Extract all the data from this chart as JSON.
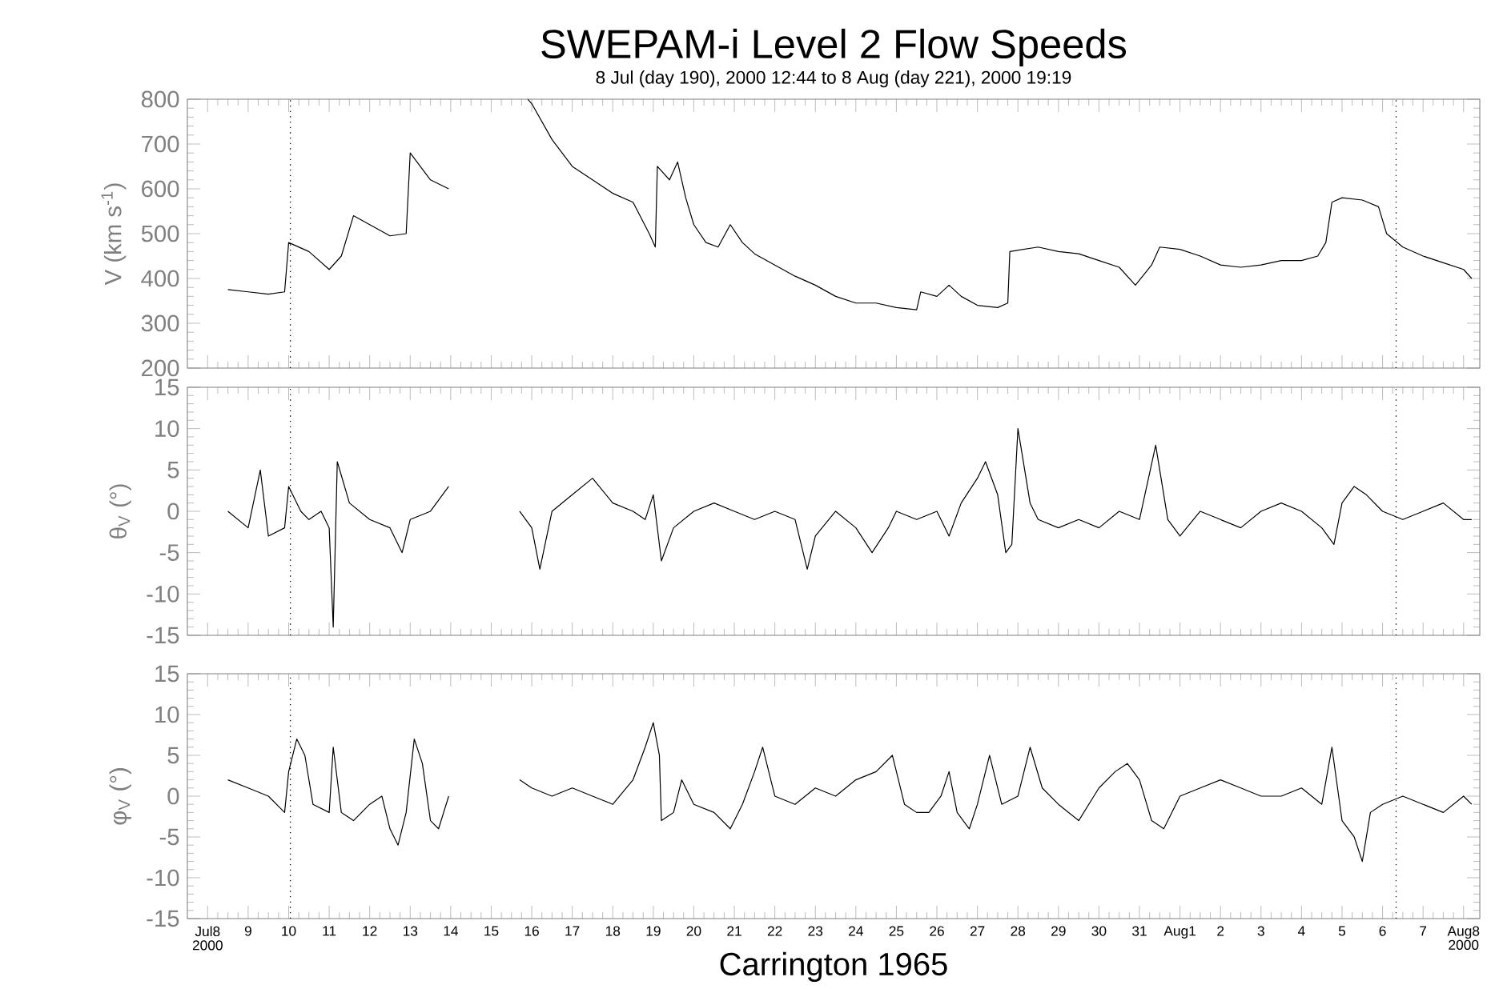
{
  "chart_data": [
    {
      "type": "line",
      "title": "SWEPAM-i Level 2 Flow Speeds",
      "subtitle": "8 Jul (day 190), 2000 12:44 to 8 Aug (day 221), 2000 19:19",
      "ylabel": "V (km s$^{-1}$)",
      "tick_labels": "y",
      "xlim": [
        "2000-07-07T12:00",
        "2000-08-08T09:36"
      ],
      "xticks": [
        {
          "value": "2000-07-08",
          "label": null
        },
        {
          "value": "2000-07-09",
          "label": null
        },
        {
          "value": "2000-07-10",
          "label": null
        },
        {
          "value": "2000-07-11",
          "label": null
        },
        {
          "value": "2000-07-12",
          "label": null
        },
        {
          "value": "2000-07-13",
          "label": null
        },
        {
          "value": "2000-07-14",
          "label": null
        },
        {
          "value": "2000-07-15",
          "label": null
        },
        {
          "value": "2000-07-16",
          "label": null
        },
        {
          "value": "2000-07-17",
          "label": null
        },
        {
          "value": "2000-07-18",
          "label": null
        },
        {
          "value": "2000-07-19",
          "label": null
        },
        {
          "value": "2000-07-20",
          "label": null
        },
        {
          "value": "2000-07-21",
          "label": null
        },
        {
          "value": "2000-07-22",
          "label": null
        },
        {
          "value": "2000-07-23",
          "label": null
        },
        {
          "value": "2000-07-24",
          "label": null
        },
        {
          "value": "2000-07-25",
          "label": null
        },
        {
          "value": "2000-07-26",
          "label": null
        },
        {
          "value": "2000-07-27",
          "label": null
        },
        {
          "value": "2000-07-28",
          "label": null
        },
        {
          "value": "2000-07-29",
          "label": null
        },
        {
          "value": "2000-07-30",
          "label": null
        },
        {
          "value": "2000-07-31",
          "label": null
        },
        {
          "value": "2000-08-01",
          "label": null
        },
        {
          "value": "2000-08-02",
          "label": null
        },
        {
          "value": "2000-08-03",
          "label": null
        },
        {
          "value": "2000-08-04",
          "label": null
        },
        {
          "value": "2000-08-05",
          "label": null
        },
        {
          "value": "2000-08-06",
          "label": null
        },
        {
          "value": "2000-08-07",
          "label": null
        },
        {
          "value": "2000-08-08",
          "label": null
        }
      ],
      "ylim": [
        200,
        800
      ],
      "yticks": [
        200,
        300,
        400,
        500,
        600,
        700,
        800
      ],
      "ref_lines": [
        {
          "axis": "x",
          "value": "2000-07-10T01:00",
          "line_style": "dotted",
          "color": "#000000"
        },
        {
          "axis": "x",
          "value": "2000-08-06T08:00",
          "line_style": "dotted",
          "color": "#000000"
        }
      ],
      "series": [
        {
          "color": "#000000",
          "line_style": "solid",
          "x": [
            "2000-07-08T12:00",
            "2000-07-09T00:00",
            "2000-07-09T12:00",
            "2000-07-09T21:36",
            "2000-07-10T00:00",
            "2000-07-10T12:00",
            "2000-07-11T00:00",
            "2000-07-11T07:12",
            "2000-07-11T14:24",
            "2000-07-12T00:00",
            "2000-07-12T12:00",
            "2000-07-12T21:36",
            "2000-07-13T00:00",
            "2000-07-13T12:00",
            "2000-07-13T22:48",
            "2000-07-14T12:00",
            "2000-07-15T21:36",
            "2000-07-16T00:00",
            "2000-07-16T12:00",
            "2000-07-17T00:00",
            "2000-07-17T12:00",
            "2000-07-18T00:00",
            "2000-07-18T12:00",
            "2000-07-18T21:36",
            "2000-07-19T01:12",
            "2000-07-19T02:24",
            "2000-07-19T09:36",
            "2000-07-19T14:24",
            "2000-07-19T19:12",
            "2000-07-20T00:00",
            "2000-07-20T07:12",
            "2000-07-20T14:24",
            "2000-07-20T21:36",
            "2000-07-21T04:48",
            "2000-07-21T12:00",
            "2000-07-22T00:00",
            "2000-07-22T12:00",
            "2000-07-23T00:00",
            "2000-07-23T12:00",
            "2000-07-24T00:00",
            "2000-07-24T12:00",
            "2000-07-25T00:00",
            "2000-07-25T12:00",
            "2000-07-25T14:24",
            "2000-07-26T00:00",
            "2000-07-26T07:12",
            "2000-07-26T14:24",
            "2000-07-27T00:00",
            "2000-07-27T12:00",
            "2000-07-27T18:00",
            "2000-07-27T19:12",
            "2000-07-28T12:00",
            "2000-07-29T00:00",
            "2000-07-29T12:00",
            "2000-07-30T00:00",
            "2000-07-30T12:00",
            "2000-07-30T21:36",
            "2000-07-31T07:12",
            "2000-07-31T12:00",
            "2000-08-01T00:00",
            "2000-08-01T12:00",
            "2000-08-02T00:00",
            "2000-08-02T12:00",
            "2000-08-03T00:00",
            "2000-08-03T12:00",
            "2000-08-04T00:00",
            "2000-08-04T09:36",
            "2000-08-04T14:24",
            "2000-08-04T18:00",
            "2000-08-05T00:00",
            "2000-08-05T12:00",
            "2000-08-05T21:36",
            "2000-08-06T02:24",
            "2000-08-06T12:00",
            "2000-08-07T00:00",
            "2000-08-07T12:00",
            "2000-08-08T00:00",
            "2000-08-08T04:48"
          ],
          "values": [
            375,
            370,
            365,
            370,
            480,
            460,
            420,
            450,
            540,
            520,
            495,
            500,
            680,
            620,
            600,
            null,
            800,
            790,
            710,
            650,
            620,
            590,
            570,
            500,
            470,
            650,
            620,
            660,
            580,
            520,
            480,
            470,
            520,
            480,
            455,
            430,
            405,
            385,
            360,
            345,
            345,
            335,
            330,
            370,
            360,
            385,
            360,
            340,
            335,
            345,
            460,
            470,
            460,
            455,
            440,
            425,
            385,
            430,
            470,
            465,
            450,
            430,
            425,
            430,
            440,
            440,
            450,
            480,
            570,
            580,
            575,
            560,
            500,
            470,
            450,
            435,
            420,
            400
          ]
        }
      ]
    },
    {
      "type": "line",
      "ylabel": "θ$_{V}$ (°)",
      "tick_labels": "y",
      "xlim": [
        "2000-07-07T12:00",
        "2000-08-08T09:36"
      ],
      "xticks": [
        {
          "value": "2000-07-08",
          "label": null
        },
        {
          "value": "2000-07-09",
          "label": null
        },
        {
          "value": "2000-07-10",
          "label": null
        },
        {
          "value": "2000-07-11",
          "label": null
        },
        {
          "value": "2000-07-12",
          "label": null
        },
        {
          "value": "2000-07-13",
          "label": null
        },
        {
          "value": "2000-07-14",
          "label": null
        },
        {
          "value": "2000-07-15",
          "label": null
        },
        {
          "value": "2000-07-16",
          "label": null
        },
        {
          "value": "2000-07-17",
          "label": null
        },
        {
          "value": "2000-07-18",
          "label": null
        },
        {
          "value": "2000-07-19",
          "label": null
        },
        {
          "value": "2000-07-20",
          "label": null
        },
        {
          "value": "2000-07-21",
          "label": null
        },
        {
          "value": "2000-07-22",
          "label": null
        },
        {
          "value": "2000-07-23",
          "label": null
        },
        {
          "value": "2000-07-24",
          "label": null
        },
        {
          "value": "2000-07-25",
          "label": null
        },
        {
          "value": "2000-07-26",
          "label": null
        },
        {
          "value": "2000-07-27",
          "label": null
        },
        {
          "value": "2000-07-28",
          "label": null
        },
        {
          "value": "2000-07-29",
          "label": null
        },
        {
          "value": "2000-07-30",
          "label": null
        },
        {
          "value": "2000-07-31",
          "label": null
        },
        {
          "value": "2000-08-01",
          "label": null
        },
        {
          "value": "2000-08-02",
          "label": null
        },
        {
          "value": "2000-08-03",
          "label": null
        },
        {
          "value": "2000-08-04",
          "label": null
        },
        {
          "value": "2000-08-05",
          "label": null
        },
        {
          "value": "2000-08-06",
          "label": null
        },
        {
          "value": "2000-08-07",
          "label": null
        },
        {
          "value": "2000-08-08",
          "label": null
        }
      ],
      "ylim": [
        -15,
        15
      ],
      "yticks": [
        -15,
        -10,
        -5,
        0,
        5,
        10,
        15
      ],
      "ref_lines": [
        {
          "axis": "x",
          "value": "2000-07-10T01:00",
          "line_style": "dotted",
          "color": "#000000"
        },
        {
          "axis": "x",
          "value": "2000-08-06T08:00",
          "line_style": "dotted",
          "color": "#000000"
        }
      ],
      "series": [
        {
          "color": "#000000",
          "line_style": "solid",
          "x": [
            "2000-07-08T12:00",
            "2000-07-09T00:00",
            "2000-07-09T07:12",
            "2000-07-09T12:00",
            "2000-07-09T21:36",
            "2000-07-10T00:00",
            "2000-07-10T07:12",
            "2000-07-10T12:00",
            "2000-07-10T19:12",
            "2000-07-11T00:00",
            "2000-07-11T02:24",
            "2000-07-11T04:48",
            "2000-07-11T12:00",
            "2000-07-12T00:00",
            "2000-07-12T12:00",
            "2000-07-12T19:12",
            "2000-07-13T00:00",
            "2000-07-13T12:00",
            "2000-07-13T22:48",
            "2000-07-14T12:00",
            "2000-07-15T16:48",
            "2000-07-16T00:00",
            "2000-07-16T04:48",
            "2000-07-16T12:00",
            "2000-07-17T00:00",
            "2000-07-17T12:00",
            "2000-07-18T00:00",
            "2000-07-18T12:00",
            "2000-07-18T19:12",
            "2000-07-19T00:00",
            "2000-07-19T04:48",
            "2000-07-19T12:00",
            "2000-07-20T00:00",
            "2000-07-20T12:00",
            "2000-07-21T00:00",
            "2000-07-21T12:00",
            "2000-07-22T00:00",
            "2000-07-22T12:00",
            "2000-07-22T19:12",
            "2000-07-23T00:00",
            "2000-07-23T12:00",
            "2000-07-24T00:00",
            "2000-07-24T09:36",
            "2000-07-24T19:12",
            "2000-07-25T00:00",
            "2000-07-25T12:00",
            "2000-07-26T00:00",
            "2000-07-26T07:12",
            "2000-07-26T14:24",
            "2000-07-27T00:00",
            "2000-07-27T04:48",
            "2000-07-27T12:00",
            "2000-07-27T16:48",
            "2000-07-27T20:24",
            "2000-07-28T00:00",
            "2000-07-28T07:12",
            "2000-07-28T12:00",
            "2000-07-29T00:00",
            "2000-07-29T12:00",
            "2000-07-30T00:00",
            "2000-07-30T12:00",
            "2000-07-31T00:00",
            "2000-07-31T09:36",
            "2000-07-31T16:48",
            "2000-08-01T00:00",
            "2000-08-01T12:00",
            "2000-08-02T00:00",
            "2000-08-02T12:00",
            "2000-08-03T00:00",
            "2000-08-03T12:00",
            "2000-08-04T00:00",
            "2000-08-04T12:00",
            "2000-08-04T19:12",
            "2000-08-05T00:00",
            "2000-08-05T07:12",
            "2000-08-05T14:24",
            "2000-08-06T00:00",
            "2000-08-06T12:00",
            "2000-08-07T00:00",
            "2000-08-07T12:00",
            "2000-08-08T00:00",
            "2000-08-08T04:48"
          ],
          "values": [
            0,
            -2,
            5,
            -3,
            -2,
            3,
            0,
            -1,
            0,
            -2,
            -14,
            6,
            1,
            -1,
            -2,
            -5,
            -1,
            0,
            3,
            null,
            0,
            -2,
            -7,
            0,
            2,
            4,
            1,
            0,
            -1,
            2,
            -6,
            -2,
            0,
            1,
            0,
            -1,
            0,
            -1,
            -7,
            -3,
            0,
            -2,
            -5,
            -2,
            0,
            -1,
            0,
            -3,
            1,
            4,
            6,
            2,
            -5,
            -4,
            10,
            1,
            -1,
            -2,
            -1,
            -2,
            0,
            -1,
            8,
            -1,
            -3,
            0,
            -1,
            -2,
            0,
            1,
            0,
            -2,
            -4,
            1,
            3,
            2,
            0,
            -1,
            0,
            1,
            -1,
            -1
          ]
        }
      ]
    },
    {
      "type": "line",
      "ylabel": "φ$_{V}$ (°)",
      "xlabel": "Carrington 1965",
      "xlim": [
        "2000-07-07T12:00",
        "2000-08-08T09:36"
      ],
      "xticks": [
        {
          "value": "2000-07-08",
          "label": "Jul8 2000"
        },
        {
          "value": "2000-07-09",
          "label": "9"
        },
        {
          "value": "2000-07-10",
          "label": "10"
        },
        {
          "value": "2000-07-11",
          "label": "11"
        },
        {
          "value": "2000-07-12",
          "label": "12"
        },
        {
          "value": "2000-07-13",
          "label": "13"
        },
        {
          "value": "2000-07-14",
          "label": "14"
        },
        {
          "value": "2000-07-15",
          "label": "15"
        },
        {
          "value": "2000-07-16",
          "label": "16"
        },
        {
          "value": "2000-07-17",
          "label": "17"
        },
        {
          "value": "2000-07-18",
          "label": "18"
        },
        {
          "value": "2000-07-19",
          "label": "19"
        },
        {
          "value": "2000-07-20",
          "label": "20"
        },
        {
          "value": "2000-07-21",
          "label": "21"
        },
        {
          "value": "2000-07-22",
          "label": "22"
        },
        {
          "value": "2000-07-23",
          "label": "23"
        },
        {
          "value": "2000-07-24",
          "label": "24"
        },
        {
          "value": "2000-07-25",
          "label": "25"
        },
        {
          "value": "2000-07-26",
          "label": "26"
        },
        {
          "value": "2000-07-27",
          "label": "27"
        },
        {
          "value": "2000-07-28",
          "label": "28"
        },
        {
          "value": "2000-07-29",
          "label": "29"
        },
        {
          "value": "2000-07-30",
          "label": "30"
        },
        {
          "value": "2000-07-31",
          "label": "31"
        },
        {
          "value": "2000-08-01",
          "label": "Aug1"
        },
        {
          "value": "2000-08-02",
          "label": "2"
        },
        {
          "value": "2000-08-03",
          "label": "3"
        },
        {
          "value": "2000-08-04",
          "label": "4"
        },
        {
          "value": "2000-08-05",
          "label": "5"
        },
        {
          "value": "2000-08-06",
          "label": "6"
        },
        {
          "value": "2000-08-07",
          "label": "7"
        },
        {
          "value": "2000-08-08",
          "label": "Aug8 2000"
        }
      ],
      "ylim": [
        -15,
        15
      ],
      "yticks": [
        -15,
        -10,
        -5,
        0,
        5,
        10,
        15
      ],
      "ref_lines": [
        {
          "axis": "x",
          "value": "2000-07-10T01:00",
          "line_style": "dotted",
          "color": "#000000"
        },
        {
          "axis": "x",
          "value": "2000-08-06T08:00",
          "line_style": "dotted",
          "color": "#000000"
        }
      ],
      "series": [
        {
          "color": "#000000",
          "line_style": "solid",
          "x": [
            "2000-07-08T12:00",
            "2000-07-09T00:00",
            "2000-07-09T12:00",
            "2000-07-09T21:36",
            "2000-07-10T00:00",
            "2000-07-10T04:48",
            "2000-07-10T09:36",
            "2000-07-10T14:24",
            "2000-07-11T00:00",
            "2000-07-11T02:24",
            "2000-07-11T07:12",
            "2000-07-11T14:24",
            "2000-07-12T00:00",
            "2000-07-12T07:12",
            "2000-07-12T12:00",
            "2000-07-12T16:48",
            "2000-07-12T21:36",
            "2000-07-13T02:24",
            "2000-07-13T07:12",
            "2000-07-13T12:00",
            "2000-07-13T16:48",
            "2000-07-13T22:48",
            "2000-07-14T12:00",
            "2000-07-15T16:48",
            "2000-07-16T00:00",
            "2000-07-16T12:00",
            "2000-07-17T00:00",
            "2000-07-17T12:00",
            "2000-07-18T00:00",
            "2000-07-18T12:00",
            "2000-07-18T19:12",
            "2000-07-19T00:00",
            "2000-07-19T03:36",
            "2000-07-19T04:48",
            "2000-07-19T12:00",
            "2000-07-19T16:48",
            "2000-07-20T00:00",
            "2000-07-20T12:00",
            "2000-07-20T21:36",
            "2000-07-21T04:48",
            "2000-07-21T12:00",
            "2000-07-21T16:48",
            "2000-07-22T00:00",
            "2000-07-22T12:00",
            "2000-07-23T00:00",
            "2000-07-23T12:00",
            "2000-07-24T00:00",
            "2000-07-24T12:00",
            "2000-07-24T21:36",
            "2000-07-25T04:48",
            "2000-07-25T12:00",
            "2000-07-25T19:12",
            "2000-07-26T02:24",
            "2000-07-26T07:12",
            "2000-07-26T12:00",
            "2000-07-26T19:12",
            "2000-07-27T00:00",
            "2000-07-27T07:12",
            "2000-07-27T14:24",
            "2000-07-28T00:00",
            "2000-07-28T07:12",
            "2000-07-28T14:24",
            "2000-07-29T00:00",
            "2000-07-29T12:00",
            "2000-07-30T00:00",
            "2000-07-30T09:36",
            "2000-07-30T16:48",
            "2000-07-31T00:00",
            "2000-07-31T07:12",
            "2000-07-31T14:24",
            "2000-08-01T00:00",
            "2000-08-01T12:00",
            "2000-08-02T00:00",
            "2000-08-02T12:00",
            "2000-08-03T00:00",
            "2000-08-03T12:00",
            "2000-08-04T00:00",
            "2000-08-04T12:00",
            "2000-08-04T18:00",
            "2000-08-05T00:00",
            "2000-08-05T07:12",
            "2000-08-05T12:00",
            "2000-08-05T16:48",
            "2000-08-06T00:00",
            "2000-08-06T12:00",
            "2000-08-07T00:00",
            "2000-08-07T12:00",
            "2000-08-08T00:00",
            "2000-08-08T04:48"
          ],
          "values": [
            2,
            1,
            0,
            -2,
            3,
            7,
            5,
            -1,
            -2,
            6,
            -2,
            -3,
            -1,
            0,
            -4,
            -6,
            -2,
            7,
            4,
            -3,
            -4,
            0,
            null,
            2,
            1,
            0,
            1,
            0,
            -1,
            2,
            6,
            9,
            5,
            -3,
            -2,
            2,
            -1,
            -2,
            -4,
            -1,
            3,
            6,
            0,
            -1,
            1,
            0,
            2,
            3,
            5,
            -1,
            -2,
            -2,
            0,
            3,
            -2,
            -4,
            -1,
            5,
            -1,
            0,
            6,
            1,
            -1,
            -3,
            1,
            3,
            4,
            2,
            -3,
            -4,
            0,
            1,
            2,
            1,
            0,
            0,
            1,
            -1,
            6,
            -3,
            -5,
            -8,
            -2,
            -1,
            0,
            -1,
            -2,
            0,
            -1
          ]
        }
      ]
    }
  ]
}
